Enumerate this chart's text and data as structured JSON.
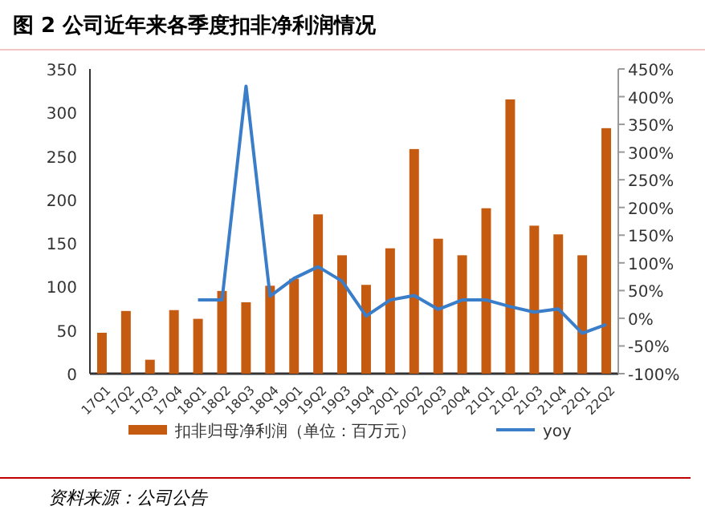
{
  "chart_data": {
    "type": "bar",
    "title": "图 2  公司近年来各季度扣非净利润情况",
    "categories": [
      "17Q1",
      "17Q2",
      "17Q3",
      "17Q4",
      "18Q1",
      "18Q2",
      "18Q3",
      "18Q4",
      "19Q1",
      "19Q2",
      "19Q3",
      "19Q4",
      "20Q1",
      "20Q2",
      "20Q3",
      "20Q4",
      "21Q1",
      "21Q2",
      "21Q3",
      "21Q4",
      "22Q1",
      "22Q2"
    ],
    "series": [
      {
        "name": "扣非归母净利润（单位：百万元）",
        "color": "#c55a11",
        "values": [
          47,
          72,
          16,
          73,
          63,
          95,
          82,
          101,
          109,
          183,
          136,
          102,
          144,
          258,
          155,
          136,
          190,
          315,
          170,
          160,
          136,
          282
        ]
      },
      {
        "name": "yoy",
        "type": "line",
        "axis": "y2",
        "color": "#3a7dc9",
        "values": [
          null,
          null,
          null,
          null,
          33,
          33,
          419,
          40,
          72,
          93,
          67,
          4,
          33,
          41,
          16,
          33,
          33,
          21,
          11,
          17,
          -27,
          -11
        ]
      }
    ],
    "ylim": [
      0,
      350
    ],
    "yticks": [
      0,
      50,
      100,
      150,
      200,
      250,
      300,
      350
    ],
    "y2lim": [
      -100,
      450
    ],
    "y2ticks": [
      {
        "value": -100,
        "label": "-100%"
      },
      {
        "value": -50,
        "label": "-50%"
      },
      {
        "value": 0,
        "label": "0%"
      },
      {
        "value": 50,
        "label": "50%"
      },
      {
        "value": 100,
        "label": "100%"
      },
      {
        "value": 150,
        "label": "150%"
      },
      {
        "value": 200,
        "label": "200%"
      },
      {
        "value": 250,
        "label": "250%"
      },
      {
        "value": 300,
        "label": "300%"
      },
      {
        "value": 350,
        "label": "350%"
      },
      {
        "value": 400,
        "label": "400%"
      },
      {
        "value": 450,
        "label": "450%"
      }
    ],
    "legend": "bottom",
    "annotations": [
      "资料来源：公司公告"
    ]
  }
}
